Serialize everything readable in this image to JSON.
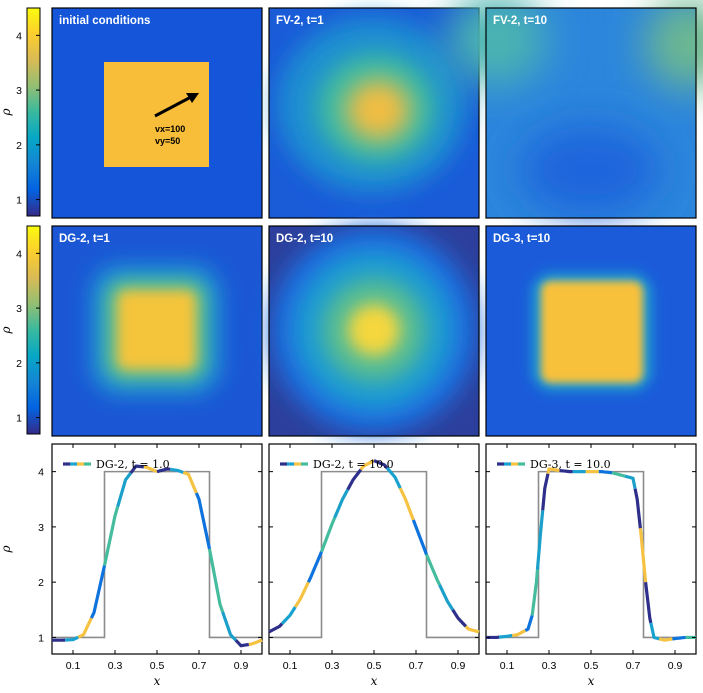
{
  "chart_data": [
    {
      "type": "heatmap",
      "title": "initial conditions",
      "profile": "square",
      "annotations": [
        "vx=100",
        "vy=50"
      ]
    },
    {
      "type": "heatmap",
      "title": "FV-2, t=1",
      "profile": "blob"
    },
    {
      "type": "heatmap",
      "title": "FV-2, t=10",
      "profile": "diffuse"
    },
    {
      "type": "heatmap",
      "title": "DG-2, t=1",
      "profile": "rounded-square"
    },
    {
      "type": "heatmap",
      "title": "DG-2, t=10",
      "profile": "round-blob"
    },
    {
      "type": "heatmap",
      "title": "DG-3, t=10",
      "profile": "sharp-square"
    },
    {
      "type": "line",
      "legend": "DG-2, t = 1.0",
      "x": [
        0.0,
        0.05,
        0.1,
        0.15,
        0.2,
        0.25,
        0.3,
        0.35,
        0.4,
        0.45,
        0.5,
        0.55,
        0.6,
        0.65,
        0.7,
        0.75,
        0.8,
        0.85,
        0.9,
        0.95,
        1.0
      ],
      "y": [
        0.95,
        0.95,
        0.96,
        1.05,
        1.45,
        2.3,
        3.2,
        3.85,
        4.1,
        4.08,
        4.0,
        4.05,
        4.02,
        3.95,
        3.5,
        2.6,
        1.6,
        1.05,
        0.85,
        0.88,
        0.95
      ],
      "reference_x": [
        0.0,
        0.25,
        0.25,
        0.75,
        0.75,
        1.0
      ],
      "reference_y": [
        1,
        1,
        4,
        4,
        1,
        1
      ],
      "xlabel": "x",
      "ylabel": "ρ",
      "xlim": [
        0,
        1
      ],
      "ylim": [
        0.7,
        4.5
      ],
      "xticks": [
        "0.1",
        "0.3",
        "0.5",
        "0.7",
        "0.9"
      ],
      "yticks": [
        "1",
        "2",
        "3",
        "4"
      ]
    },
    {
      "type": "line",
      "legend": "DG-2, t = 10.0",
      "x": [
        0.0,
        0.05,
        0.1,
        0.15,
        0.2,
        0.25,
        0.3,
        0.35,
        0.4,
        0.45,
        0.5,
        0.55,
        0.6,
        0.65,
        0.7,
        0.75,
        0.8,
        0.85,
        0.9,
        0.95,
        1.0
      ],
      "y": [
        1.1,
        1.2,
        1.4,
        1.7,
        2.1,
        2.55,
        3.05,
        3.5,
        3.85,
        4.1,
        4.2,
        4.12,
        3.9,
        3.5,
        3.0,
        2.5,
        2.05,
        1.65,
        1.35,
        1.15,
        1.1
      ],
      "reference_x": [
        0.0,
        0.25,
        0.25,
        0.75,
        0.75,
        1.0
      ],
      "reference_y": [
        1,
        1,
        4,
        4,
        1,
        1
      ],
      "xlabel": "x",
      "ylabel": "",
      "xlim": [
        0,
        1
      ],
      "ylim": [
        0.7,
        4.5
      ],
      "xticks": [
        "0.1",
        "0.3",
        "0.5",
        "0.7",
        "0.9"
      ],
      "yticks": []
    },
    {
      "type": "line",
      "legend": "DG-3, t = 10.0",
      "x": [
        0.0,
        0.05,
        0.1,
        0.15,
        0.2,
        0.22,
        0.24,
        0.26,
        0.28,
        0.3,
        0.35,
        0.4,
        0.45,
        0.5,
        0.55,
        0.6,
        0.65,
        0.7,
        0.72,
        0.74,
        0.76,
        0.78,
        0.8,
        0.85,
        0.9,
        0.95,
        1.0
      ],
      "y": [
        1.0,
        1.0,
        1.02,
        1.05,
        1.15,
        1.4,
        2.0,
        2.9,
        3.7,
        4.05,
        4.02,
        4.0,
        4.0,
        4.0,
        4.0,
        3.98,
        3.93,
        3.88,
        3.5,
        2.8,
        2.0,
        1.35,
        1.0,
        0.95,
        0.98,
        1.0,
        1.0
      ],
      "reference_x": [
        0.0,
        0.25,
        0.25,
        0.75,
        0.75,
        1.0
      ],
      "reference_y": [
        1,
        1,
        4,
        4,
        1,
        1
      ],
      "xlabel": "x",
      "ylabel": "",
      "xlim": [
        0,
        1
      ],
      "ylim": [
        0.7,
        4.5
      ],
      "xticks": [
        "0.1",
        "0.3",
        "0.5",
        "0.7",
        "0.9"
      ],
      "yticks": []
    }
  ],
  "colorbars": [
    {
      "label": "ρ",
      "ticks": [
        "1",
        "2",
        "3",
        "4"
      ],
      "range": [
        0.7,
        4.5
      ]
    },
    {
      "label": "ρ",
      "ticks": [
        "1",
        "2",
        "3",
        "4"
      ],
      "range": [
        0.7,
        4.5
      ]
    }
  ],
  "colors": {
    "reference_line": "#8c8c8c",
    "colormap": [
      "#352a87",
      "#0363e1",
      "#1485d4",
      "#06a7c6",
      "#38b99e",
      "#92bf73",
      "#d9ba56",
      "#fcce2e",
      "#f9fb0e"
    ]
  }
}
